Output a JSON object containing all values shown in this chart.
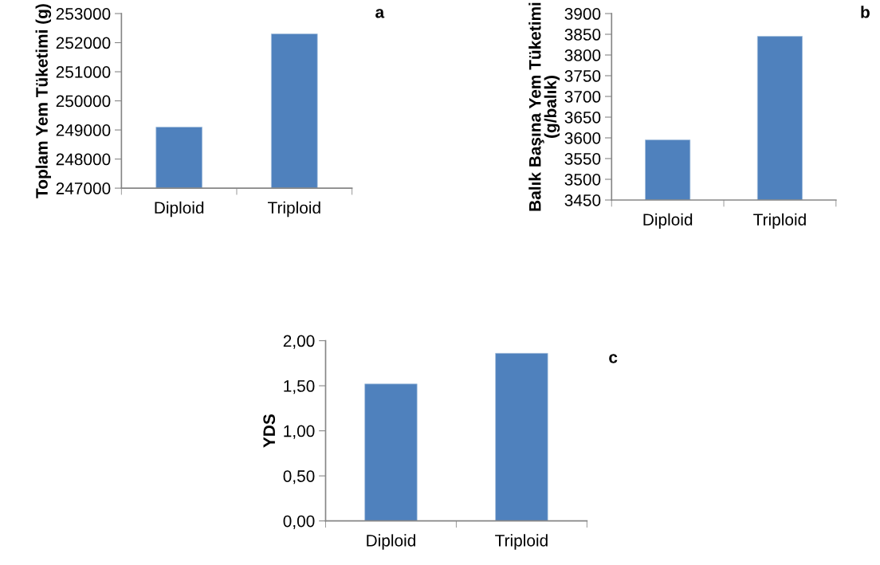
{
  "chart_data": [
    {
      "type": "bar",
      "categories": [
        "Diploid",
        "Triploid"
      ],
      "values": [
        249100,
        252300
      ],
      "color": "#4f81bd",
      "ylabel": "Toplam Yem Tüketimi (g)",
      "ylim": [
        247000,
        253000
      ],
      "yticks": [
        247000,
        248000,
        249000,
        250000,
        251000,
        252000,
        253000
      ],
      "annotations": [
        "a"
      ]
    },
    {
      "type": "bar",
      "categories": [
        "Diploid",
        "Triploid"
      ],
      "values": [
        3595,
        3845
      ],
      "color": "#4f81bd",
      "ylabel": "Balık Başına Yem Tüketimi\n(g/balık)",
      "ylim": [
        3450,
        3900
      ],
      "yticks": [
        3450,
        3500,
        3550,
        3600,
        3650,
        3700,
        3750,
        3800,
        3850,
        3900
      ],
      "annotations": [
        "b"
      ]
    },
    {
      "type": "bar",
      "categories": [
        "Diploid",
        "Triploid"
      ],
      "values": [
        1.52,
        1.86
      ],
      "color": "#4f81bd",
      "ylabel": "YDS",
      "ylim": [
        0,
        2
      ],
      "yticks": [
        {
          "value": 0,
          "label": "0,00"
        },
        {
          "value": 0.5,
          "label": "0,50"
        },
        {
          "value": 1,
          "label": "1,00"
        },
        {
          "value": 1.5,
          "label": "1,50"
        },
        {
          "value": 2,
          "label": "2,00"
        }
      ],
      "annotations": [
        "c"
      ]
    }
  ]
}
